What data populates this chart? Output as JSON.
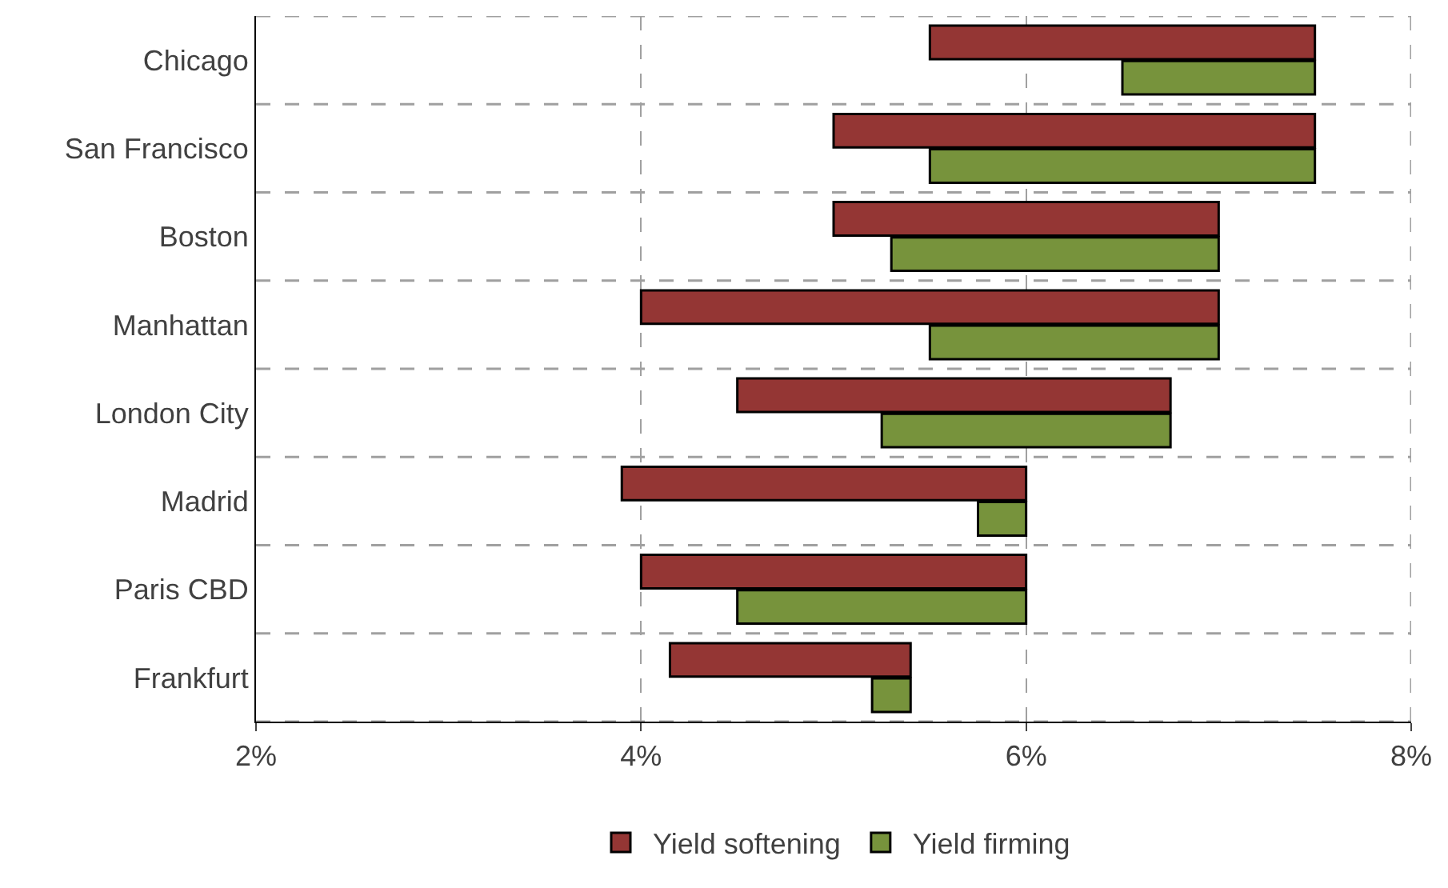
{
  "chart_data": {
    "type": "bar",
    "orientation": "horizontal",
    "categories": [
      "Chicago",
      "San Francisco",
      "Boston",
      "Manhattan",
      "London City",
      "Madrid",
      "Paris CBD",
      "Frankfurt"
    ],
    "series": [
      {
        "name": "Yield softening",
        "color": "#943634",
        "base": [
          5.5,
          5.0,
          5.0,
          4.0,
          4.5,
          3.9,
          4.0,
          4.15
        ],
        "values": [
          2.0,
          2.5,
          2.0,
          3.0,
          2.25,
          2.1,
          2.0,
          1.25
        ]
      },
      {
        "name": "Yield firming",
        "color": "#77933c",
        "base": [
          7.5,
          7.5,
          7.0,
          7.0,
          6.75,
          6.0,
          6.0,
          5.4
        ],
        "values": [
          -1.0,
          -2.0,
          -1.7,
          -1.5,
          -1.5,
          -0.25,
          -1.5,
          -0.2
        ]
      }
    ],
    "xlim": [
      2,
      8
    ],
    "xticks": [
      {
        "value": 2,
        "label": "2%"
      },
      {
        "value": 4,
        "label": "4%"
      },
      {
        "value": 6,
        "label": "6%"
      },
      {
        "value": 8,
        "label": "8%"
      }
    ],
    "grid": true,
    "legend": "bottom"
  }
}
